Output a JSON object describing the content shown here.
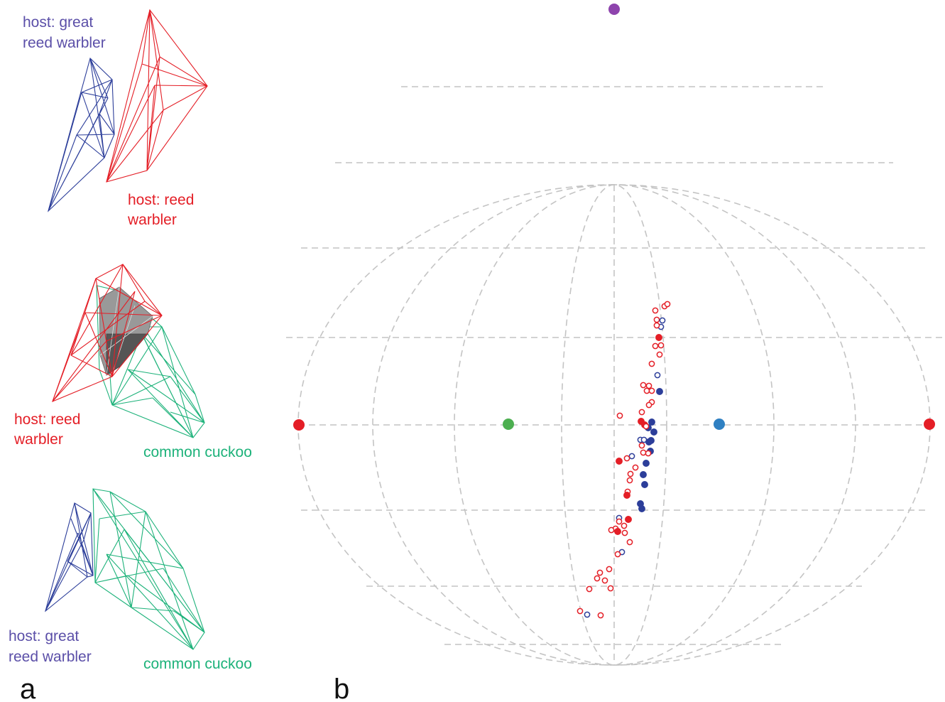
{
  "colors": {
    "blue": "#2c3e9a",
    "red": "#e41e26",
    "green": "#1db27a",
    "blue_label": "#5b4fa8",
    "grid": "#c4c4c4",
    "vertex_purple": "#8e44ad",
    "vertex_green": "#4caf50",
    "vertex_lightblue": "#2f80c2",
    "overlap_gray": "#777777"
  },
  "panel_a": {
    "letter": "a",
    "top": {
      "label_blue": [
        "host: great",
        "reed warbler"
      ],
      "label_red": [
        "host: reed",
        "warbler"
      ]
    },
    "middle": {
      "label_red": [
        "host: reed",
        "warbler"
      ],
      "label_green": [
        "common cuckoo"
      ]
    },
    "bottom": {
      "label_blue": [
        "host: great",
        "reed warbler"
      ],
      "label_green": [
        "common cuckoo"
      ]
    }
  },
  "panel_b": {
    "letter": "b",
    "vertices": [
      {
        "name": "top-vertex",
        "color": "#8e44ad"
      },
      {
        "name": "left-vertex",
        "color": "#e41e26"
      },
      {
        "name": "inner-left-vertex",
        "color": "#4caf50"
      },
      {
        "name": "inner-right-vertex",
        "color": "#2f80c2"
      },
      {
        "name": "right-vertex",
        "color": "#e41e26"
      }
    ]
  }
}
